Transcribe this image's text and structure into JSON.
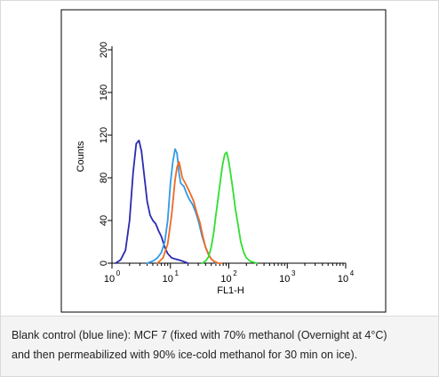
{
  "chart_data": {
    "type": "line",
    "xlabel": "FL1-H",
    "ylabel": "Counts",
    "x_scale": "log",
    "xlim": [
      1,
      10000
    ],
    "ylim": [
      0,
      200
    ],
    "x_ticks": [
      {
        "value": 1,
        "base": "10",
        "exp": "0"
      },
      {
        "value": 10,
        "base": "10",
        "exp": "1"
      },
      {
        "value": 100,
        "base": "10",
        "exp": "2"
      },
      {
        "value": 1000,
        "base": "10",
        "exp": "3"
      },
      {
        "value": 10000,
        "base": "10",
        "exp": "4"
      }
    ],
    "y_ticks": [
      "0",
      "40",
      "80",
      "120",
      "160",
      "200"
    ],
    "grid": false,
    "legend": "none",
    "series": [
      {
        "color": "#2b2bb0",
        "x": [
          1.15,
          1.4,
          1.7,
          2.0,
          2.3,
          2.6,
          2.9,
          3.2,
          3.6,
          4.0,
          4.5,
          5.0,
          5.6,
          6.3,
          7.0,
          8.0,
          9.0,
          10.5,
          12.0,
          14.0,
          16.0,
          18.0,
          20.0
        ],
        "y": [
          0,
          3,
          12,
          40,
          85,
          112,
          115,
          105,
          80,
          58,
          45,
          40,
          37,
          30,
          25,
          15,
          9,
          5,
          4,
          3,
          2,
          1,
          0
        ]
      },
      {
        "color": "#2f9be6",
        "x": [
          4.0,
          5.0,
          6.0,
          7.0,
          8.0,
          9.0,
          10.0,
          11.0,
          12.0,
          13.0,
          14.0,
          15.0,
          17.0,
          19.0,
          21.0,
          24.0,
          27.0,
          30.0,
          35.0,
          40.0,
          45.0,
          50.0,
          55.0,
          60.0
        ],
        "y": [
          0,
          2,
          5,
          10,
          20,
          40,
          75,
          95,
          107,
          103,
          85,
          75,
          72,
          65,
          60,
          55,
          48,
          40,
          25,
          15,
          8,
          4,
          2,
          0
        ]
      },
      {
        "color": "#f06a22",
        "x": [
          6.0,
          7.5,
          9.0,
          10.5,
          12.0,
          13.0,
          14.0,
          15.0,
          16.0,
          18.0,
          20.0,
          22.0,
          25.0,
          28.0,
          32.0,
          36.0,
          40.0,
          45.0,
          50.0,
          55.0,
          60.0,
          66.0,
          75.0
        ],
        "y": [
          0,
          5,
          18,
          45,
          78,
          90,
          95,
          88,
          80,
          75,
          70,
          65,
          58,
          48,
          38,
          25,
          15,
          8,
          4,
          2,
          1,
          0,
          0
        ]
      },
      {
        "color": "#2ee02e",
        "x": [
          35.0,
          40.0,
          45.0,
          50.0,
          55.0,
          60.0,
          66.0,
          72.0,
          78.0,
          85.0,
          92.0,
          100.0,
          110.0,
          120.0,
          130.0,
          145.0,
          160.0,
          180.0,
          200.0,
          230.0,
          260.0,
          300.0
        ],
        "y": [
          0,
          2,
          6,
          15,
          28,
          45,
          62,
          78,
          92,
          102,
          104,
          95,
          80,
          65,
          50,
          35,
          20,
          10,
          5,
          2,
          1,
          0
        ]
      }
    ]
  },
  "caption": {
    "line1": "Blank control (blue line): MCF 7 (fixed with 70% methanol (Overnight at 4°C)",
    "line2": "and then permeabilized with 90% ice-cold methanol for 30 min on ice)."
  }
}
